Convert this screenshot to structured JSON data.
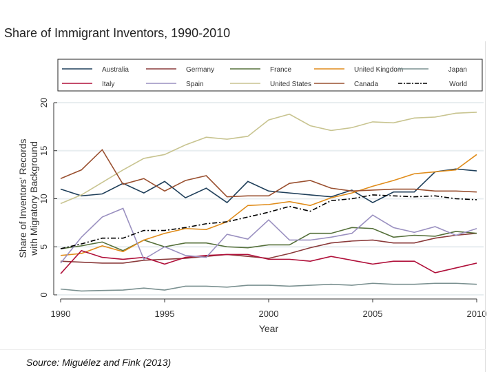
{
  "chart_data": {
    "type": "line",
    "title": "Share of Immigrant Inventors, 1990-2010",
    "xlabel": "Year",
    "ylabel": "Share of Inventors' Records with Migratory Background",
    "xlim": [
      1990,
      2010
    ],
    "ylim": [
      0,
      20
    ],
    "xticks": [
      1990,
      1995,
      2000,
      2005,
      2010
    ],
    "yticks": [
      0,
      5,
      10,
      15,
      20
    ],
    "grid": true,
    "legend": "top",
    "x": [
      1990,
      1991,
      1992,
      1993,
      1994,
      1995,
      1996,
      1997,
      1998,
      1999,
      2000,
      2001,
      2002,
      2003,
      2004,
      2005,
      2006,
      2007,
      2008,
      2009,
      2010
    ],
    "series": [
      {
        "name": "Australia",
        "color": "#1f3f5a",
        "values": [
          11,
          10.3,
          10.5,
          11.6,
          10.6,
          11.8,
          10.1,
          11.1,
          9.6,
          11.8,
          10.8,
          10.6,
          10.4,
          10.2,
          10.9,
          9.6,
          10.7,
          10.7,
          12.8,
          13.1,
          12.9
        ]
      },
      {
        "name": "Germany",
        "color": "#8a3a3a",
        "values": [
          3.5,
          3.4,
          3.3,
          3.3,
          3.6,
          3.7,
          3.8,
          4.0,
          4.2,
          4.0,
          3.8,
          4.3,
          4.9,
          5.4,
          5.6,
          5.7,
          5.4,
          5.4,
          5.9,
          6.2,
          6.4
        ]
      },
      {
        "name": "France",
        "color": "#55703a",
        "values": [
          4.8,
          5.1,
          5.5,
          4.6,
          5.7,
          5.0,
          5.4,
          5.4,
          5.0,
          4.9,
          5.2,
          5.2,
          6.4,
          6.4,
          7.0,
          6.9,
          6.0,
          6.2,
          6.1,
          6.6,
          6.4
        ]
      },
      {
        "name": "United Kingdom",
        "color": "#e08c1a",
        "values": [
          4.1,
          4.3,
          5.1,
          4.5,
          5.7,
          6.4,
          6.9,
          6.8,
          7.6,
          9.3,
          9.4,
          9.7,
          9.3,
          10.1,
          10.6,
          11.3,
          11.9,
          12.6,
          12.8,
          13.0,
          14.6
        ]
      },
      {
        "name": "Japan",
        "color": "#7a9090",
        "values": [
          0.6,
          0.4,
          0.45,
          0.5,
          0.7,
          0.5,
          0.9,
          0.9,
          0.8,
          1.0,
          1.0,
          0.9,
          1.0,
          1.1,
          1.0,
          1.2,
          1.1,
          1.1,
          1.2,
          1.2,
          1.1
        ]
      },
      {
        "name": "Italy",
        "color": "#b0103a",
        "values": [
          2.2,
          4.6,
          3.9,
          3.7,
          3.9,
          3.2,
          3.9,
          4.1,
          4.2,
          4.2,
          3.7,
          3.7,
          3.5,
          4.0,
          3.6,
          3.2,
          3.5,
          3.5,
          2.3,
          2.8,
          3.3
        ]
      },
      {
        "name": "Spain",
        "color": "#9a90c0",
        "values": [
          3.3,
          6.0,
          8.1,
          9.0,
          3.7,
          5.0,
          4.1,
          3.9,
          6.3,
          5.8,
          7.8,
          5.7,
          5.7,
          6.0,
          6.4,
          8.3,
          7.0,
          6.5,
          7.1,
          6.2,
          6.9
        ]
      },
      {
        "name": "United States",
        "color": "#c8c490",
        "values": [
          9.5,
          10.4,
          11.7,
          13.0,
          14.2,
          14.6,
          15.6,
          16.4,
          16.2,
          16.5,
          18.2,
          18.8,
          17.6,
          17.1,
          17.4,
          18.0,
          17.9,
          18.4,
          18.5,
          18.9,
          19.0
        ]
      },
      {
        "name": "Canada",
        "color": "#9a5030",
        "values": [
          12.1,
          13.0,
          15.1,
          11.5,
          12.1,
          10.8,
          11.9,
          12.4,
          10.2,
          10.3,
          10.3,
          11.6,
          11.9,
          11.1,
          10.8,
          10.9,
          11.0,
          11.0,
          10.8,
          10.8,
          10.7
        ]
      },
      {
        "name": "World",
        "color": "#000000",
        "dash": true,
        "values": [
          4.8,
          5.3,
          5.9,
          5.9,
          6.7,
          6.7,
          7.0,
          7.4,
          7.6,
          8.1,
          8.6,
          9.2,
          8.7,
          9.8,
          10.0,
          10.4,
          10.3,
          10.2,
          10.3,
          10.0,
          9.9
        ]
      }
    ]
  },
  "source": "Source: Miguélez and Fink (2013)"
}
